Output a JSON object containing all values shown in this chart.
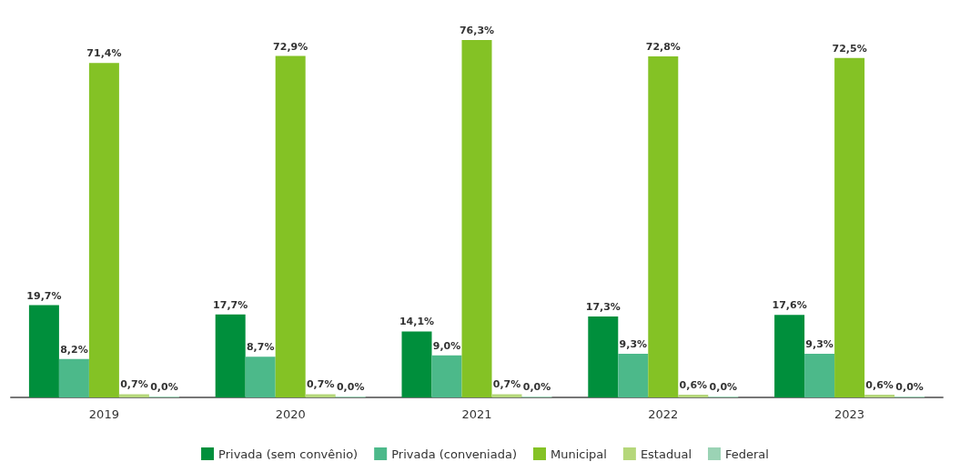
{
  "chart_data": {
    "type": "bar",
    "categories": [
      "2019",
      "2020",
      "2021",
      "2022",
      "2023"
    ],
    "series": [
      {
        "name": "Privada (sem convênio)",
        "color": "#008f3c",
        "values": [
          19.7,
          17.7,
          14.1,
          17.3,
          17.6
        ],
        "value_labels": [
          "19,7%",
          "17,7%",
          "14,1%",
          "17,3%",
          "17,6%"
        ]
      },
      {
        "name": "Privada (conveniada)",
        "color": "#4cb98a",
        "values": [
          8.2,
          8.7,
          9.0,
          9.3,
          9.3
        ],
        "value_labels": [
          "8,2%",
          "8,7%",
          "9,0%",
          "9,3%",
          "9,3%"
        ]
      },
      {
        "name": "Municipal",
        "color": "#84c225",
        "values": [
          71.4,
          72.9,
          76.3,
          72.8,
          72.5
        ],
        "value_labels": [
          "71,4%",
          "72,9%",
          "76,3%",
          "72,8%",
          "72,5%"
        ]
      },
      {
        "name": "Estadual",
        "color": "#b5d77a",
        "values": [
          0.7,
          0.7,
          0.7,
          0.6,
          0.6
        ],
        "value_labels": [
          "0,7%",
          "0,7%",
          "0,7%",
          "0,6%",
          "0,6%"
        ]
      },
      {
        "name": "Federal",
        "color": "#9bd3b5",
        "values": [
          0.0,
          0.0,
          0.0,
          0.0,
          0.0
        ],
        "value_labels": [
          "0,0%",
          "0,0%",
          "0,0%",
          "0,0%",
          "0,0%"
        ]
      }
    ],
    "legend": "bottom",
    "grid": false,
    "tick_labels": "x"
  }
}
